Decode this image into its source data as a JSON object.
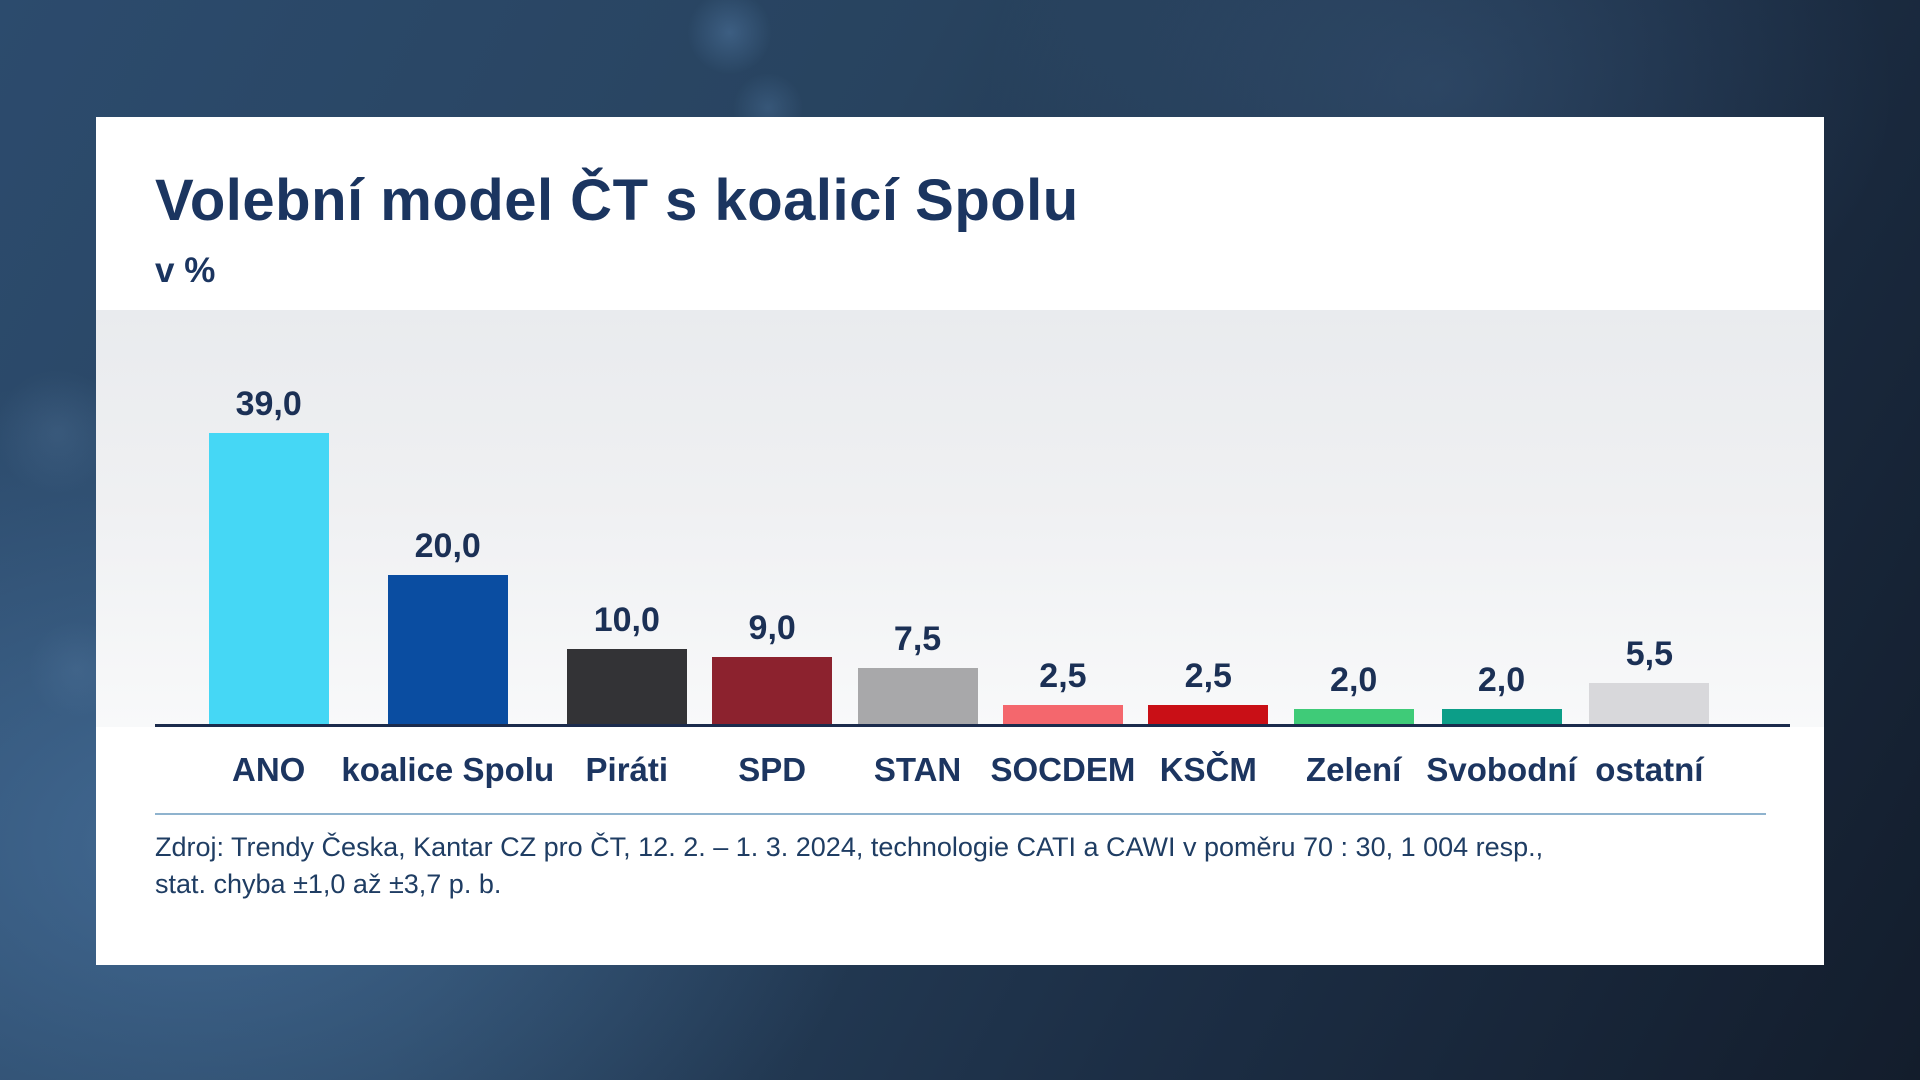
{
  "card": {
    "title": "Volební model ČT s koalicí Spolu",
    "subtitle": "v %",
    "source_line1": "Zdroj: Trendy Česka, Kantar CZ pro ČT, 12. 2. – 1. 3. 2024, technologie CATI a CAWI v poměru 70 : 30, 1 004 resp.,",
    "source_line2": "stat. chyba ±1,0 až ±3,7 p. b."
  },
  "chart_data": {
    "type": "bar",
    "title": "Volební model ČT s koalicí Spolu",
    "ylabel": "v %",
    "categories": [
      "ANO",
      "koalice Spolu",
      "Piráti",
      "SPD",
      "STAN",
      "SOCDEM",
      "KSČM",
      "Zelení",
      "Svobodní",
      "ostatní"
    ],
    "values": [
      39.0,
      20.0,
      10.0,
      9.0,
      7.5,
      2.5,
      2.5,
      2.0,
      2.0,
      5.5
    ],
    "value_labels": [
      "39,0",
      "20,0",
      "10,0",
      "9,0",
      "7,5",
      "2,5",
      "2,5",
      "2,0",
      "2,0",
      "5,5"
    ],
    "bar_colors": [
      "#45d7f5",
      "#0a4da1",
      "#333336",
      "#8c222e",
      "#a8a8aa",
      "#f4676d",
      "#c90f16",
      "#3fcb78",
      "#0c9e88",
      "#d8d8db"
    ],
    "ylim": [
      0,
      45
    ],
    "grid": false,
    "legend": false,
    "value_labels_position": "above-bars",
    "decimal_separator": ","
  },
  "colors": {
    "title_navy": "#1b3560",
    "axis_line": "#1b2b4c",
    "divider": "#8fb3ce",
    "card_background": "#ffffff",
    "panel_background": "#eff0f2",
    "page_background": "#27425f"
  }
}
